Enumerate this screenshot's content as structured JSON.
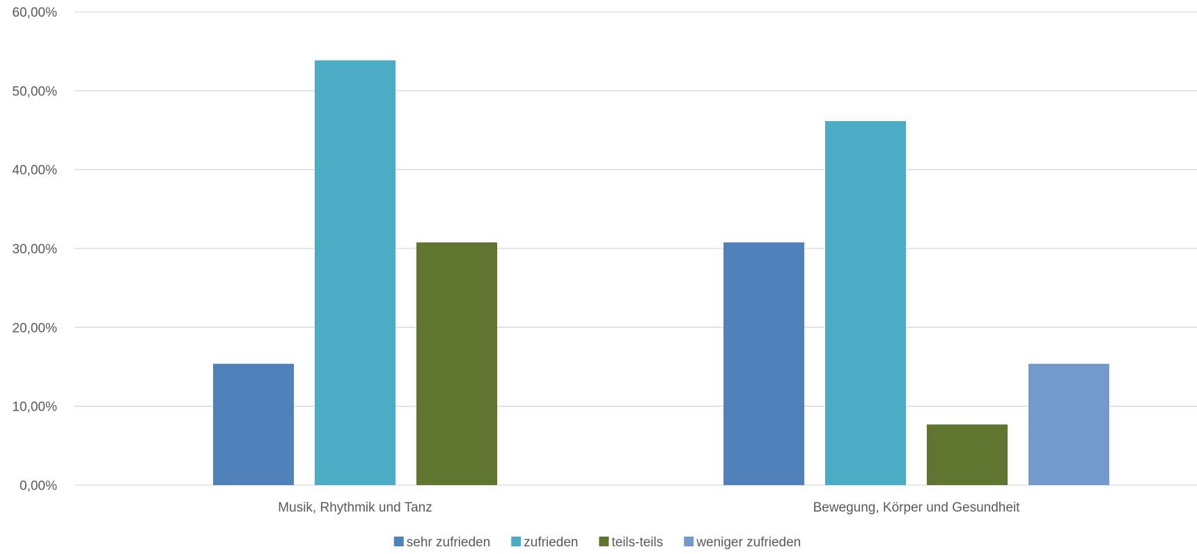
{
  "chart_data": {
    "type": "bar",
    "categories": [
      "Musik, Rhythmik und Tanz",
      "Bewegung, Körper und Gesundheit"
    ],
    "series": [
      {
        "name": "sehr zufrieden",
        "color": "#4f81bd",
        "values": [
          15.38,
          30.77
        ]
      },
      {
        "name": "zufrieden",
        "color": "#4bacc6",
        "values": [
          53.85,
          46.15
        ]
      },
      {
        "name": "teils-teils",
        "color": "#5f7530",
        "values": [
          30.77,
          7.69
        ]
      },
      {
        "name": "weniger zufrieden",
        "color": "#729aca",
        "values": [
          0,
          15.38
        ]
      }
    ],
    "y_ticks": [
      "0,00%",
      "10,00%",
      "20,00%",
      "30,00%",
      "40,00%",
      "50,00%",
      "60,00%"
    ],
    "ylim": [
      0,
      60
    ],
    "grid": true,
    "legend_position": "bottom"
  }
}
